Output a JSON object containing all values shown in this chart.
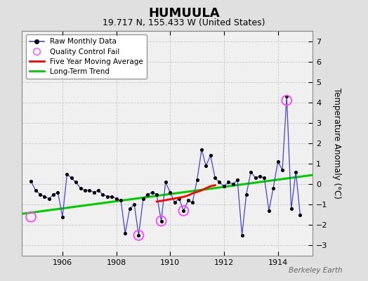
{
  "title": "HUMUULA",
  "subtitle": "19.717 N, 155.433 W (United States)",
  "ylabel": "Temperature Anomaly (°C)",
  "watermark": "Berkeley Earth",
  "background_color": "#e0e0e0",
  "plot_bg_color": "#f0f0f0",
  "xlim": [
    1904.5,
    1915.3
  ],
  "ylim": [
    -3.5,
    7.5
  ],
  "yticks": [
    -3,
    -2,
    -1,
    0,
    1,
    2,
    3,
    4,
    5,
    6,
    7
  ],
  "xticks": [
    1906,
    1908,
    1910,
    1912,
    1914
  ],
  "raw_x": [
    1904.83,
    1905.0,
    1905.17,
    1905.33,
    1905.5,
    1905.67,
    1905.83,
    1906.0,
    1906.17,
    1906.33,
    1906.5,
    1906.67,
    1906.83,
    1907.0,
    1907.17,
    1907.33,
    1907.5,
    1907.67,
    1907.83,
    1908.0,
    1908.17,
    1908.33,
    1908.5,
    1908.67,
    1908.83,
    1909.0,
    1909.17,
    1909.33,
    1909.5,
    1909.67,
    1909.83,
    1910.0,
    1910.17,
    1910.33,
    1910.5,
    1910.67,
    1910.83,
    1911.0,
    1911.17,
    1911.33,
    1911.5,
    1911.67,
    1911.83,
    1912.0,
    1912.17,
    1912.33,
    1912.5,
    1912.67,
    1912.83,
    1913.0,
    1913.17,
    1913.33,
    1913.5,
    1913.67,
    1913.83,
    1914.0,
    1914.17,
    1914.33,
    1914.5,
    1914.67,
    1914.83
  ],
  "raw_y": [
    0.15,
    -0.3,
    -0.5,
    -0.6,
    -0.7,
    -0.5,
    -0.4,
    -1.6,
    0.5,
    0.3,
    0.1,
    -0.2,
    -0.3,
    -0.3,
    -0.4,
    -0.3,
    -0.5,
    -0.6,
    -0.6,
    -0.7,
    -0.8,
    -2.4,
    -1.2,
    -1.0,
    -2.5,
    -0.7,
    -0.5,
    -0.4,
    -0.5,
    -1.8,
    0.1,
    -0.4,
    -0.9,
    -0.7,
    -1.3,
    -0.8,
    -0.9,
    0.2,
    1.7,
    0.9,
    1.4,
    0.3,
    0.1,
    -0.1,
    0.1,
    0.0,
    0.2,
    -2.5,
    -0.5,
    0.6,
    0.3,
    0.4,
    0.3,
    -1.3,
    -0.2,
    1.1,
    0.7,
    4.3,
    -1.2,
    0.6,
    -1.5
  ],
  "qc_x": [
    1904.83,
    1908.83,
    1909.67,
    1910.5,
    1914.33
  ],
  "qc_y": [
    -1.6,
    -2.5,
    -1.8,
    -1.3,
    4.1
  ],
  "five_year_ma_x": [
    1909.5,
    1909.67,
    1909.83,
    1910.0,
    1910.17,
    1910.33,
    1910.5,
    1910.67,
    1910.83,
    1911.0,
    1911.17,
    1911.33,
    1911.5,
    1911.67
  ],
  "five_year_ma_y": [
    -0.85,
    -0.82,
    -0.78,
    -0.74,
    -0.7,
    -0.66,
    -0.62,
    -0.55,
    -0.45,
    -0.38,
    -0.3,
    -0.2,
    -0.1,
    -0.05
  ],
  "trend_x": [
    1904.5,
    1915.3
  ],
  "trend_y": [
    -1.45,
    0.45
  ]
}
